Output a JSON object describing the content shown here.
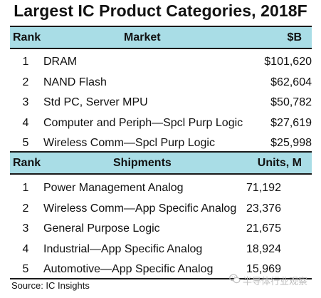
{
  "title": "Largest IC Product Categories, 2018F",
  "market_header": {
    "rank": "Rank",
    "name": "Market",
    "value": "$B"
  },
  "shipments_header": {
    "rank": "Rank",
    "name": "Shipments",
    "value": "Units, M"
  },
  "source": "Source:  IC Insights",
  "watermark": {
    "text": "半导体行业观察",
    "icon": "wechat-icon"
  },
  "colors": {
    "header_band": "#a9dde6",
    "rule": "#1a1a1a"
  },
  "chart_data": {
    "type": "table",
    "title": "Largest IC Product Categories, 2018F",
    "tables": [
      {
        "columns": [
          "Rank",
          "Market",
          "$B"
        ],
        "rows": [
          {
            "rank": "1",
            "name": "DRAM",
            "value": "$101,620"
          },
          {
            "rank": "2",
            "name": "NAND Flash",
            "value": "$62,604"
          },
          {
            "rank": "3",
            "name": "Std PC, Server MPU",
            "value": "$50,782"
          },
          {
            "rank": "4",
            "name": "Computer and Periph—Spcl Purp Logic",
            "value": "$27,619"
          },
          {
            "rank": "5",
            "name": "Wireless Comm—Spcl Purp Logic",
            "value": "$25,998"
          }
        ]
      },
      {
        "columns": [
          "Rank",
          "Shipments",
          "Units, M"
        ],
        "rows": [
          {
            "rank": "1",
            "name": "Power Management Analog",
            "value": "71,192"
          },
          {
            "rank": "2",
            "name": "Wireless Comm—App Specific Analog",
            "value": "23,376"
          },
          {
            "rank": "3",
            "name": "General Purpose Logic",
            "value": "21,675"
          },
          {
            "rank": "4",
            "name": "Industrial—App Specific Analog",
            "value": "18,924"
          },
          {
            "rank": "5",
            "name": "Automotive—App Specific Analog",
            "value": "15,969"
          }
        ]
      }
    ]
  }
}
